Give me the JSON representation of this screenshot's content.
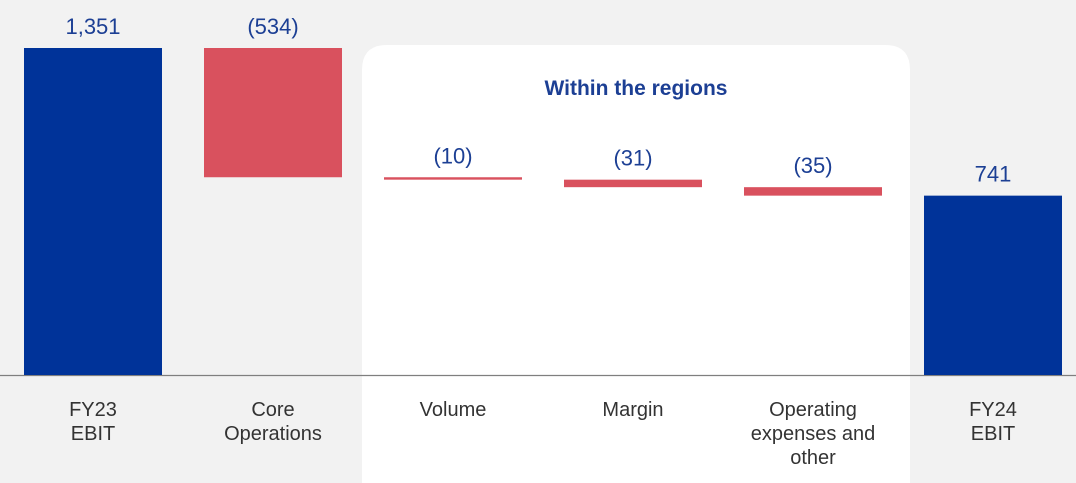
{
  "chart_data": {
    "type": "waterfall",
    "annotation": "Within the regions",
    "categories": [
      [
        "FY23",
        "EBIT"
      ],
      [
        "Core",
        "Operations"
      ],
      [
        "Volume"
      ],
      [
        "Margin"
      ],
      [
        "Operating",
        "expenses and",
        "other"
      ],
      [
        "FY24",
        "EBIT"
      ]
    ],
    "values": [
      1351,
      -534,
      -10,
      -31,
      -35,
      741
    ],
    "value_labels": [
      "1,351",
      "(534)",
      "(10)",
      "(31)",
      "(35)",
      "741"
    ],
    "totals": [
      true,
      false,
      false,
      false,
      false,
      true
    ],
    "total_color": "#003399",
    "decrease_color": "#d9515e",
    "increase_color": "#3fa34d"
  }
}
